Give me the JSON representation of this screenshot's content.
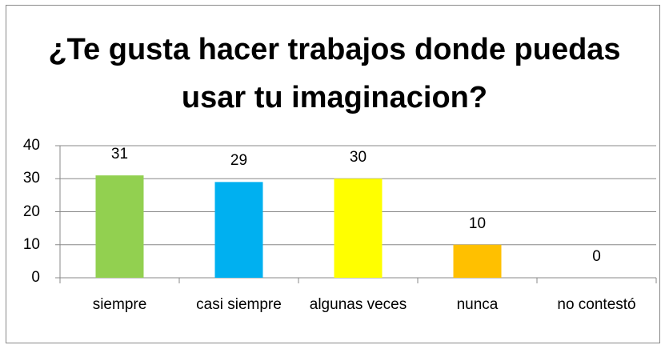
{
  "chart_data": {
    "type": "bar",
    "title": "¿Te gusta hacer trabajos donde puedas usar tu imaginacion?",
    "categories": [
      "siempre",
      "casi siempre",
      "algunas veces",
      "nunca",
      "no contestó"
    ],
    "values": [
      31,
      29,
      30,
      10,
      0
    ],
    "colors": [
      "#92d050",
      "#00b0f0",
      "#ffff00",
      "#ffc000",
      "#7030a0"
    ],
    "ylim": [
      0,
      40
    ],
    "yticks": [
      0,
      10,
      20,
      30,
      40
    ],
    "grid": true
  }
}
